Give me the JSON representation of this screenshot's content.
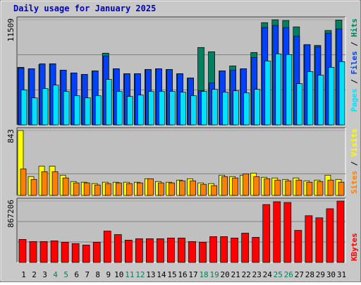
{
  "legend_separator": " / ",
  "chart_data": [
    {
      "type": "bar",
      "title": "Daily usage for January 2025",
      "ylim": [
        0,
        11509
      ],
      "yticks": [
        11509
      ],
      "series": [
        {
          "name": "Hits",
          "color": "#008060",
          "values": [
            6299,
            6143,
            6610,
            6687,
            5988,
            5677,
            5521,
            5910,
            7854,
            6143,
            5599,
            5599,
            6065,
            6143,
            6065,
            5599,
            5132,
            8476,
            8009,
            5910,
            6454,
            6143,
            7932,
            11197,
            11509,
            11430,
            10731,
            8787,
            8709,
            10342,
            11480
          ]
        },
        {
          "name": "Files",
          "color": "#0040ff",
          "values": [
            6221,
            6143,
            6687,
            6687,
            5988,
            5677,
            5521,
            5910,
            7543,
            6143,
            5599,
            5599,
            6065,
            6143,
            6065,
            5599,
            5132,
            3732,
            4588,
            5910,
            5988,
            6143,
            7387,
            10653,
            10886,
            10653,
            9720,
            8787,
            8554,
            10031,
            10498
          ]
        },
        {
          "name": "Pages",
          "color": "#00e0ff",
          "values": [
            3810,
            2955,
            3966,
            4355,
            3655,
            3188,
            2955,
            3188,
            4977,
            3655,
            3110,
            3266,
            3655,
            3655,
            3655,
            3577,
            3188,
            3655,
            3888,
            3577,
            3732,
            3499,
            3888,
            6998,
            7776,
            7698,
            4510,
            5832,
            5443,
            6299,
            6921
          ]
        }
      ]
    },
    {
      "type": "bar",
      "ylim": [
        0,
        843
      ],
      "yticks": [
        843
      ],
      "series": [
        {
          "name": "Visits",
          "color": "#ffff00",
          "values": [
            843,
            245,
            380,
            380,
            263,
            181,
            172,
            154,
            172,
            172,
            172,
            172,
            217,
            181,
            172,
            199,
            217,
            163,
            154,
            263,
            245,
            263,
            290,
            236,
            227,
            208,
            227,
            190,
            199,
            263,
            208
          ]
        },
        {
          "name": "Sites",
          "color": "#ff8000",
          "values": [
            344,
            208,
            308,
            308,
            227,
            163,
            163,
            136,
            154,
            163,
            154,
            163,
            217,
            163,
            163,
            190,
            190,
            145,
            127,
            245,
            227,
            281,
            245,
            217,
            199,
            190,
            199,
            172,
            181,
            199,
            172
          ]
        }
      ]
    },
    {
      "type": "bar",
      "ylim": [
        0,
        867206
      ],
      "yticks": [
        867206
      ],
      "series": [
        {
          "name": "KBytes",
          "color": "#ff0000",
          "values": [
            325215,
            295650,
            295650,
            305505,
            285795,
            266085,
            246375,
            285795,
            443475,
            394200,
            315360,
            335070,
            335070,
            335070,
            344925,
            344925,
            295650,
            285795,
            364635,
            364635,
            344925,
            413910,
            354780,
            817965,
            857351,
            847530,
            453330,
            660285,
            630720,
            758835,
            867206
          ]
        }
      ],
      "categories": [
        "1",
        "2",
        "3",
        "4",
        "5",
        "6",
        "7",
        "8",
        "9",
        "10",
        "11",
        "12",
        "13",
        "14",
        "15",
        "16",
        "17",
        "18",
        "19",
        "20",
        "21",
        "22",
        "23",
        "24",
        "25",
        "26",
        "27",
        "28",
        "29",
        "30",
        "31"
      ],
      "category_colors": [
        "#000000",
        "#000000",
        "#000000",
        "#008060",
        "#008060",
        "#000000",
        "#000000",
        "#000000",
        "#000000",
        "#000000",
        "#008060",
        "#008060",
        "#000000",
        "#000000",
        "#000000",
        "#000000",
        "#000000",
        "#008060",
        "#008060",
        "#000000",
        "#000000",
        "#000000",
        "#000000",
        "#000000",
        "#008060",
        "#008060",
        "#000000",
        "#000000",
        "#000000",
        "#000000",
        "#000000"
      ]
    }
  ]
}
